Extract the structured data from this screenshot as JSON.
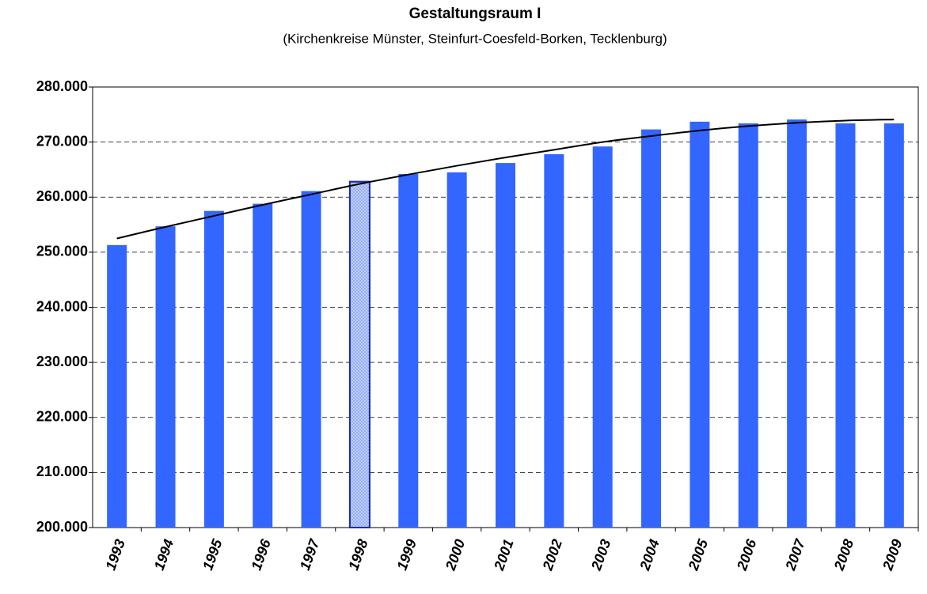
{
  "chart_data": {
    "type": "bar",
    "title": "Gestaltungsraum I",
    "subtitle": "(Kirchenkreise Münster, Steinfurt-Coesfeld-Borken, Tecklenburg)",
    "categories": [
      "1993",
      "1994",
      "1995",
      "1996",
      "1997",
      "1998",
      "1999",
      "2000",
      "2001",
      "2002",
      "2003",
      "2004",
      "2005",
      "2006",
      "2007",
      "2008",
      "2009"
    ],
    "series": [
      {
        "type": "bar",
        "color": "#3366ff",
        "point_colors": [
          "#3366ff",
          "#3366ff",
          "#3366ff",
          "#3366ff",
          "#3366ff",
          "#c3d1fb",
          "#3366ff",
          "#3366ff",
          "#3366ff",
          "#3366ff",
          "#3366ff",
          "#3366ff",
          "#3366ff",
          "#3366ff",
          "#3366ff",
          "#3366ff",
          "#3366ff"
        ],
        "values": [
          251300,
          254700,
          257500,
          258800,
          261100,
          262800,
          264200,
          264500,
          266200,
          267800,
          269200,
          272300,
          273700,
          273400,
          274100,
          273400,
          273400
        ]
      },
      {
        "type": "line",
        "color": "#000000",
        "values": [
          252500,
          254600,
          256600,
          258600,
          260500,
          262400,
          264100,
          265700,
          267200,
          268600,
          270000,
          271100,
          272100,
          272900,
          273500,
          273900,
          274100
        ]
      }
    ],
    "ylim": [
      200000,
      280000
    ],
    "yticks": [
      {
        "value": 200000,
        "label": "200.000"
      },
      {
        "value": 210000,
        "label": "210.000"
      },
      {
        "value": 220000,
        "label": "220.000"
      },
      {
        "value": 230000,
        "label": "230.000"
      },
      {
        "value": 240000,
        "label": "240.000"
      },
      {
        "value": 250000,
        "label": "250.000"
      },
      {
        "value": 260000,
        "label": "260.000"
      },
      {
        "value": 270000,
        "label": "270.000"
      },
      {
        "value": 280000,
        "label": "280.000"
      }
    ],
    "grid": true
  }
}
